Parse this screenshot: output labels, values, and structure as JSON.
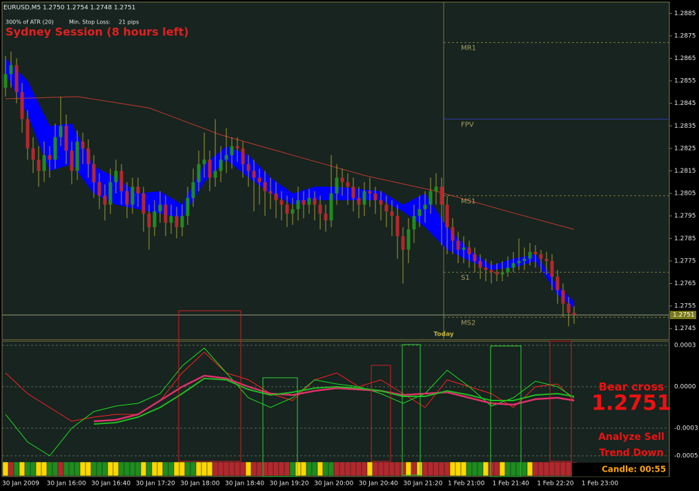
{
  "header": {
    "symbol": "EURUSD,M5 1.2750 1.2754 1.2748 1.2751",
    "atr": "300% of ATR (20)",
    "stop_label": "Min. Stop Loss:",
    "stop_value": "21 pips",
    "session": "Sydney Session (8 hours left)"
  },
  "price_chart": {
    "type": "candlestick",
    "ylim": [
      1.274,
      1.289
    ],
    "yticks": [
      1.2885,
      1.2875,
      1.2865,
      1.2855,
      1.2845,
      1.2835,
      1.2825,
      1.2815,
      1.2805,
      1.2795,
      1.2785,
      1.2775,
      1.2765,
      1.2755,
      1.2745
    ],
    "colors": {
      "bull": "#1e8c1e",
      "bear": "#b3282d",
      "wick": "#a39c2e"
    },
    "candles": [
      [
        1.2852,
        1.2866,
        1.2848,
        1.2858
      ],
      [
        1.2858,
        1.2868,
        1.2852,
        1.2862
      ],
      [
        1.2862,
        1.2865,
        1.2845,
        1.285
      ],
      [
        1.285,
        1.2854,
        1.2832,
        1.2838
      ],
      [
        1.2838,
        1.2842,
        1.282,
        1.2825
      ],
      [
        1.2825,
        1.283,
        1.2814,
        1.282
      ],
      [
        1.282,
        1.2826,
        1.2808,
        1.2815
      ],
      [
        1.2815,
        1.2828,
        1.281,
        1.2822
      ],
      [
        1.2822,
        1.2826,
        1.2812,
        1.282
      ],
      [
        1.282,
        1.2836,
        1.2816,
        1.283
      ],
      [
        1.283,
        1.2848,
        1.2826,
        1.2835
      ],
      [
        1.2835,
        1.284,
        1.2818,
        1.2824
      ],
      [
        1.2824,
        1.2828,
        1.2809,
        1.2815
      ],
      [
        1.2815,
        1.2833,
        1.2811,
        1.2828
      ],
      [
        1.2828,
        1.2832,
        1.2818,
        1.2825
      ],
      [
        1.2825,
        1.2829,
        1.2812,
        1.2818
      ],
      [
        1.2818,
        1.2822,
        1.2803,
        1.281
      ],
      [
        1.281,
        1.2814,
        1.2798,
        1.2804
      ],
      [
        1.2804,
        1.2809,
        1.2793,
        1.28
      ],
      [
        1.28,
        1.2816,
        1.2796,
        1.281
      ],
      [
        1.281,
        1.282,
        1.2805,
        1.2815
      ],
      [
        1.2815,
        1.2818,
        1.28,
        1.2806
      ],
      [
        1.2806,
        1.281,
        1.2794,
        1.28
      ],
      [
        1.28,
        1.2812,
        1.2796,
        1.2808
      ],
      [
        1.2808,
        1.2812,
        1.2799,
        1.2805
      ],
      [
        1.2805,
        1.2808,
        1.2788,
        1.2796
      ],
      [
        1.2796,
        1.28,
        1.278,
        1.279
      ],
      [
        1.279,
        1.2802,
        1.2786,
        1.2797
      ],
      [
        1.2797,
        1.2806,
        1.2792,
        1.28
      ],
      [
        1.28,
        1.2804,
        1.2786,
        1.2792
      ],
      [
        1.2792,
        1.28,
        1.2787,
        1.2795
      ],
      [
        1.2795,
        1.2799,
        1.2785,
        1.279
      ],
      [
        1.279,
        1.28,
        1.2786,
        1.2795
      ],
      [
        1.2795,
        1.2808,
        1.2791,
        1.2803
      ],
      [
        1.2803,
        1.2816,
        1.2799,
        1.281
      ],
      [
        1.281,
        1.2824,
        1.2806,
        1.2818
      ],
      [
        1.2818,
        1.2832,
        1.2812,
        1.282
      ],
      [
        1.282,
        1.2824,
        1.2806,
        1.2812
      ],
      [
        1.2812,
        1.2838,
        1.2808,
        1.2815
      ],
      [
        1.2815,
        1.2826,
        1.281,
        1.282
      ],
      [
        1.282,
        1.2834,
        1.2814,
        1.2822
      ],
      [
        1.2822,
        1.283,
        1.2816,
        1.2826
      ],
      [
        1.2826,
        1.283,
        1.2819,
        1.2825
      ],
      [
        1.2825,
        1.2828,
        1.2812,
        1.2818
      ],
      [
        1.2818,
        1.2822,
        1.2808,
        1.2815
      ],
      [
        1.2815,
        1.282,
        1.2797,
        1.2812
      ],
      [
        1.2812,
        1.2816,
        1.28,
        1.281
      ],
      [
        1.281,
        1.2815,
        1.2795,
        1.2806
      ],
      [
        1.2806,
        1.2812,
        1.2798,
        1.2805
      ],
      [
        1.2805,
        1.281,
        1.2794,
        1.2802
      ],
      [
        1.2802,
        1.2806,
        1.2793,
        1.28
      ],
      [
        1.28,
        1.2804,
        1.279,
        1.2796
      ],
      [
        1.2796,
        1.2803,
        1.2791,
        1.2798
      ],
      [
        1.2798,
        1.2808,
        1.2793,
        1.2802
      ],
      [
        1.2802,
        1.2806,
        1.2794,
        1.28
      ],
      [
        1.28,
        1.2807,
        1.2796,
        1.2803
      ],
      [
        1.2803,
        1.2806,
        1.2793,
        1.28
      ],
      [
        1.28,
        1.2804,
        1.2789,
        1.2796
      ],
      [
        1.2796,
        1.28,
        1.2788,
        1.2793
      ],
      [
        1.2793,
        1.2822,
        1.279,
        1.2805
      ],
      [
        1.2805,
        1.2818,
        1.28,
        1.2812
      ],
      [
        1.2812,
        1.2816,
        1.2804,
        1.281
      ],
      [
        1.281,
        1.2814,
        1.28,
        1.2808
      ],
      [
        1.2808,
        1.2812,
        1.2797,
        1.2803
      ],
      [
        1.2803,
        1.2808,
        1.2794,
        1.28
      ],
      [
        1.28,
        1.281,
        1.2795,
        1.2806
      ],
      [
        1.2806,
        1.2812,
        1.2799,
        1.2805
      ],
      [
        1.2805,
        1.2808,
        1.2796,
        1.2802
      ],
      [
        1.2802,
        1.2806,
        1.2793,
        1.28
      ],
      [
        1.28,
        1.2804,
        1.279,
        1.2797
      ],
      [
        1.2797,
        1.2802,
        1.2786,
        1.2795
      ],
      [
        1.2795,
        1.28,
        1.2776,
        1.2786
      ],
      [
        1.2786,
        1.279,
        1.2765,
        1.278
      ],
      [
        1.278,
        1.2794,
        1.2774,
        1.2789
      ],
      [
        1.2789,
        1.28,
        1.2783,
        1.2795
      ],
      [
        1.2795,
        1.2804,
        1.279,
        1.2798
      ],
      [
        1.2798,
        1.2806,
        1.2792,
        1.28
      ],
      [
        1.28,
        1.2812,
        1.2796,
        1.2806
      ],
      [
        1.2806,
        1.2814,
        1.28,
        1.2808
      ],
      [
        1.2808,
        1.2812,
        1.2782,
        1.28
      ],
      [
        1.28,
        1.2804,
        1.2778,
        1.279
      ],
      [
        1.279,
        1.2794,
        1.2778,
        1.2784
      ],
      [
        1.2784,
        1.2788,
        1.2774,
        1.278
      ],
      [
        1.278,
        1.2786,
        1.2774,
        1.2781
      ],
      [
        1.2781,
        1.2784,
        1.2772,
        1.2778
      ],
      [
        1.2778,
        1.2781,
        1.277,
        1.2775
      ],
      [
        1.2775,
        1.2778,
        1.2767,
        1.2772
      ],
      [
        1.2772,
        1.2776,
        1.2766,
        1.2771
      ],
      [
        1.2771,
        1.2775,
        1.2765,
        1.277
      ],
      [
        1.277,
        1.2774,
        1.2766,
        1.2769
      ],
      [
        1.2769,
        1.2775,
        1.2766,
        1.277
      ],
      [
        1.277,
        1.2777,
        1.2768,
        1.2772
      ],
      [
        1.2772,
        1.2779,
        1.277,
        1.2774
      ],
      [
        1.2774,
        1.2785,
        1.2771,
        1.2775
      ],
      [
        1.2775,
        1.2781,
        1.2771,
        1.2776
      ],
      [
        1.2776,
        1.2783,
        1.2773,
        1.2779
      ],
      [
        1.2779,
        1.2782,
        1.2772,
        1.2778
      ],
      [
        1.2778,
        1.278,
        1.277,
        1.2776
      ],
      [
        1.2776,
        1.2779,
        1.2769,
        1.2775
      ],
      [
        1.2775,
        1.2778,
        1.2762,
        1.2768
      ],
      [
        1.2768,
        1.2771,
        1.2756,
        1.2762
      ],
      [
        1.2762,
        1.2765,
        1.275,
        1.2756
      ],
      [
        1.2756,
        1.2759,
        1.2746,
        1.2752
      ],
      [
        1.2752,
        1.2755,
        1.2747,
        1.2751
      ]
    ],
    "current": 1.2751,
    "current_color": "#9a9a7a",
    "ma": {
      "color": "#c0392b",
      "x": [
        0,
        13,
        26,
        39,
        52,
        65,
        78,
        91,
        103
      ],
      "values": [
        1.2847,
        1.2848,
        1.2843,
        1.2831,
        1.2822,
        1.2813,
        1.2806,
        1.2797,
        1.2789
      ]
    },
    "cloud": {
      "color": "#0000ff",
      "x": [
        0,
        4,
        8,
        12,
        16,
        20,
        24,
        28,
        32,
        36,
        40,
        44,
        48,
        52,
        56,
        60,
        64,
        68,
        72,
        76,
        80,
        84,
        88,
        92,
        96,
        100,
        103
      ],
      "upper": [
        1.2865,
        1.2855,
        1.2835,
        1.2836,
        1.2817,
        1.2812,
        1.2805,
        1.2806,
        1.28,
        1.2818,
        1.2826,
        1.2822,
        1.2812,
        1.2805,
        1.2808,
        1.2808,
        1.2807,
        1.2806,
        1.28,
        1.2805,
        1.279,
        1.278,
        1.2773,
        1.2776,
        1.2778,
        1.2764,
        1.2757
      ],
      "lower": [
        1.2858,
        1.284,
        1.2815,
        1.2818,
        1.2805,
        1.28,
        1.2798,
        1.2796,
        1.2794,
        1.281,
        1.282,
        1.2812,
        1.2805,
        1.28,
        1.2802,
        1.2802,
        1.2802,
        1.2802,
        1.2797,
        1.279,
        1.278,
        1.2775,
        1.2771,
        1.2772,
        1.2775,
        1.276,
        1.2754
      ]
    },
    "pivots": [
      {
        "label": "MR1",
        "value": 1.2872,
        "color": "#7d7a34",
        "dashed": true
      },
      {
        "label": "FPV",
        "value": 1.2838,
        "color": "#2a3aa8",
        "dashed": false
      },
      {
        "label": "MS1",
        "value": 1.2804,
        "color": "#7d7a34",
        "dashed": true
      },
      {
        "label": "S1",
        "value": 1.277,
        "color": "#7d7a34",
        "dashed": true
      },
      {
        "label": "MS2",
        "value": 1.275,
        "color": "#7d7a34",
        "dashed": true
      }
    ],
    "today_label": "Today"
  },
  "indicator": {
    "ylim": [
      -0.00065,
      0.00033
    ],
    "grid": true,
    "yticks": [
      {
        "value": 0.0003,
        "label": "0.0003"
      },
      {
        "value": 0,
        "label": "0.0000"
      },
      {
        "value": -0.0003,
        "label": "-0.0003"
      },
      {
        "value": -0.0005,
        "label": "-0.0005"
      }
    ],
    "x": [
      0,
      4,
      8,
      12,
      16,
      20,
      24,
      28,
      32,
      36,
      40,
      44,
      48,
      52,
      56,
      60,
      64,
      68,
      72,
      76,
      80,
      84,
      88,
      92,
      96,
      100,
      103
    ],
    "series": [
      {
        "color": "#ff2020",
        "width": 1,
        "values": [
          0.0001,
          -5e-05,
          -0.00015,
          -0.00025,
          -0.00022,
          -0.0002,
          -0.0002,
          -0.0001,
          0.0001,
          0.00025,
          0.0001,
          5e-05,
          -5e-05,
          -0.0001,
          5e-05,
          0.0001,
          0,
          5e-05,
          -5e-05,
          -0.00015,
          5e-05,
          0,
          -5e-05,
          -0.00015,
          0,
          2e-05,
          -0.0001
        ]
      },
      {
        "color": "#20e020",
        "width": 1,
        "values": [
          -0.0002,
          -0.0004,
          -0.0005,
          -0.0003,
          -0.00018,
          -0.00014,
          -0.00012,
          -5e-05,
          0.00015,
          0.00028,
          0.0001,
          -8e-05,
          -0.00015,
          -8e-05,
          5e-05,
          2e-05,
          0,
          -5e-05,
          -0.00012,
          -5e-05,
          0.00012,
          0,
          -0.00014,
          -8e-05,
          4e-05,
          0,
          -8e-05
        ]
      },
      {
        "color": "#e0306a",
        "width": 2.5,
        "values": [
          null,
          null,
          null,
          null,
          -0.00025,
          -0.00024,
          -0.0002,
          -0.0001,
          0,
          8e-05,
          6e-05,
          0,
          -5e-05,
          -6e-05,
          -3e-05,
          -1e-05,
          -2e-05,
          -3e-05,
          -6e-05,
          -5e-05,
          -4e-05,
          -8e-05,
          -0.00012,
          -0.00013,
          -9e-05,
          -8e-05,
          -0.0001
        ]
      },
      {
        "color": "#22bb22",
        "width": 2,
        "values": [
          null,
          null,
          null,
          null,
          -0.00027,
          -0.00026,
          -0.00022,
          -0.00015,
          -5e-05,
          6e-05,
          5e-05,
          -2e-05,
          -6e-05,
          -4e-05,
          -1e-05,
          0,
          -1e-05,
          -3e-05,
          -7e-05,
          -7e-05,
          -3e-05,
          -6e-05,
          -0.0001,
          -0.0001,
          -6e-05,
          -5e-05,
          -7e-05
        ]
      }
    ],
    "strip_palette": {
      "r": "#b3282d",
      "g": "#1e8c1e",
      "y": "#ffd800"
    },
    "strip": "yrgyggyyggrgggyygggyyggggygyyggyyggyyyrrrrrryrrrrrrrgyyggyggrrrrrryrrrrrryryrrrrryyygggyrryggggyrrrrrrrr"
  },
  "signals": {
    "cross": "Bear cross",
    "price": 1.2751,
    "analyze": "Analyze Sell",
    "trend": "Trend Down",
    "candle_label": "Candle:",
    "candle_time": "00:55"
  },
  "time_axis": [
    "30 Jan 2009",
    "30 Jan 16:00",
    "30 Jan 16:40",
    "30 Jan 17:20",
    "30 Jan 18:00",
    "30 Jan 18:40",
    "30 Jan 19:20",
    "30 Jan 20:00",
    "30 Jan 20:40",
    "30 Jan 21:20",
    "1 Feb 21:00",
    "1 Feb 21:40",
    "1 Feb 22:20",
    "1 Feb 23:00"
  ]
}
